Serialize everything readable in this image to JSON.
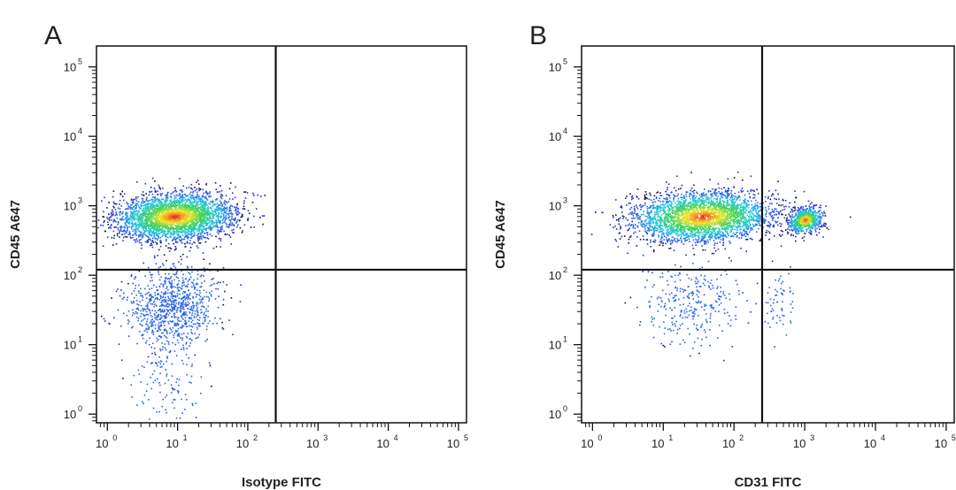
{
  "chart_data": [
    {
      "type": "scatter",
      "panel_label": "A",
      "xlabel": "Isotype FITC",
      "ylabel": "CD45 A647",
      "x_scale": "log",
      "y_scale": "log",
      "xlim": [
        0.7,
        130000
      ],
      "ylim": [
        0.75,
        200000
      ],
      "x_ticks": [
        {
          "base": "10",
          "exp": "0",
          "value": 1
        },
        {
          "base": "10",
          "exp": "1",
          "value": 10
        },
        {
          "base": "10",
          "exp": "2",
          "value": 100
        },
        {
          "base": "10",
          "exp": "3",
          "value": 1000
        },
        {
          "base": "10",
          "exp": "4",
          "value": 10000
        },
        {
          "base": "10",
          "exp": "5",
          "value": 100000
        }
      ],
      "y_ticks": [
        {
          "base": "10",
          "exp": "0",
          "value": 1
        },
        {
          "base": "10",
          "exp": "1",
          "value": 10
        },
        {
          "base": "10",
          "exp": "2",
          "value": 100
        },
        {
          "base": "10",
          "exp": "3",
          "value": 1000
        },
        {
          "base": "10",
          "exp": "4",
          "value": 10000
        },
        {
          "base": "10",
          "exp": "5",
          "value": 100000
        }
      ],
      "quadrant_gate": {
        "x": 250,
        "y": 120
      },
      "populations": [
        {
          "name": "main",
          "cx_log": 0.95,
          "cy_log": 2.85,
          "sx_log": 0.42,
          "sy_log": 0.17,
          "count": 3200
        },
        {
          "name": "low",
          "cx_log": 0.9,
          "cy_log": 1.55,
          "sx_log": 0.32,
          "sy_log": 0.3,
          "count": 900
        },
        {
          "name": "tail",
          "cx_log": 0.85,
          "cy_log": 0.5,
          "sx_log": 0.28,
          "sy_log": 0.35,
          "count": 120
        }
      ]
    },
    {
      "type": "scatter",
      "panel_label": "B",
      "xlabel": "CD31 FITC",
      "ylabel": "CD45 A647",
      "x_scale": "log",
      "y_scale": "log",
      "xlim": [
        0.7,
        130000
      ],
      "ylim": [
        0.75,
        200000
      ],
      "x_ticks": [
        {
          "base": "10",
          "exp": "0",
          "value": 1
        },
        {
          "base": "10",
          "exp": "1",
          "value": 10
        },
        {
          "base": "10",
          "exp": "2",
          "value": 100
        },
        {
          "base": "10",
          "exp": "3",
          "value": 1000
        },
        {
          "base": "10",
          "exp": "4",
          "value": 10000
        },
        {
          "base": "10",
          "exp": "5",
          "value": 100000
        }
      ],
      "y_ticks": [
        {
          "base": "10",
          "exp": "0",
          "value": 1
        },
        {
          "base": "10",
          "exp": "1",
          "value": 10
        },
        {
          "base": "10",
          "exp": "2",
          "value": 100
        },
        {
          "base": "10",
          "exp": "3",
          "value": 1000
        },
        {
          "base": "10",
          "exp": "4",
          "value": 10000
        },
        {
          "base": "10",
          "exp": "5",
          "value": 100000
        }
      ],
      "quadrant_gate": {
        "x": 250,
        "y": 120
      },
      "populations": [
        {
          "name": "main",
          "cx_log": 1.55,
          "cy_log": 2.85,
          "sx_log": 0.5,
          "sy_log": 0.18,
          "count": 3000
        },
        {
          "name": "cd31_pos",
          "cx_log": 3.0,
          "cy_log": 2.8,
          "sx_log": 0.12,
          "sy_log": 0.09,
          "count": 700
        },
        {
          "name": "low",
          "cx_log": 1.4,
          "cy_log": 1.6,
          "sx_log": 0.35,
          "sy_log": 0.3,
          "count": 300
        },
        {
          "name": "low_right",
          "cx_log": 2.65,
          "cy_log": 1.55,
          "sx_log": 0.12,
          "sy_log": 0.25,
          "count": 60
        }
      ]
    }
  ]
}
